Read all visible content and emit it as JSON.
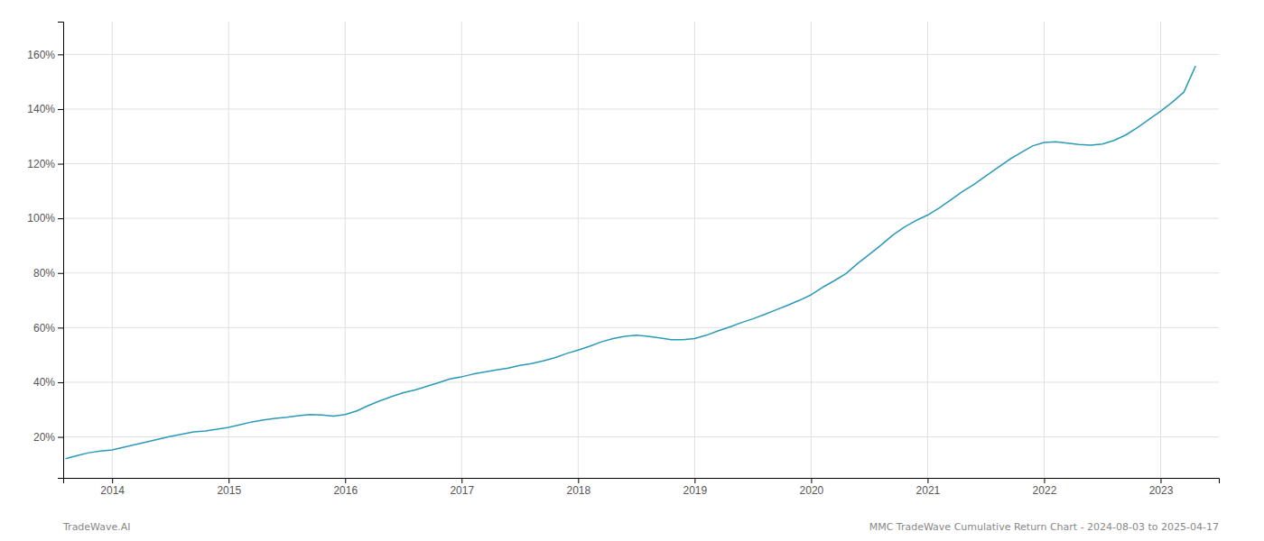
{
  "chart_data": {
    "type": "line",
    "x": [
      2013.6,
      2013.7,
      2013.8,
      2013.9,
      2014.0,
      2014.1,
      2014.2,
      2014.3,
      2014.4,
      2014.5,
      2014.6,
      2014.7,
      2014.8,
      2014.9,
      2015.0,
      2015.1,
      2015.2,
      2015.3,
      2015.4,
      2015.5,
      2015.6,
      2015.7,
      2015.8,
      2015.9,
      2016.0,
      2016.1,
      2016.2,
      2016.3,
      2016.4,
      2016.5,
      2016.6,
      2016.7,
      2016.8,
      2016.9,
      2017.0,
      2017.1,
      2017.2,
      2017.3,
      2017.4,
      2017.5,
      2017.6,
      2017.7,
      2017.8,
      2017.9,
      2018.0,
      2018.1,
      2018.2,
      2018.3,
      2018.4,
      2018.5,
      2018.6,
      2018.7,
      2018.8,
      2018.9,
      2019.0,
      2019.1,
      2019.2,
      2019.3,
      2019.4,
      2019.5,
      2019.6,
      2019.7,
      2019.8,
      2019.9,
      2020.0,
      2020.1,
      2020.2,
      2020.3,
      2020.4,
      2020.5,
      2020.6,
      2020.7,
      2020.8,
      2020.9,
      2021.0,
      2021.1,
      2021.2,
      2021.3,
      2021.4,
      2021.5,
      2021.6,
      2021.7,
      2021.8,
      2021.9,
      2022.0,
      2022.1,
      2022.2,
      2022.3,
      2022.4,
      2022.5,
      2022.6,
      2022.7,
      2022.8,
      2022.9,
      2023.0,
      2023.1,
      2023.2,
      2023.3
    ],
    "values": [
      0.12,
      0.132,
      0.142,
      0.148,
      0.152,
      0.162,
      0.172,
      0.182,
      0.192,
      0.202,
      0.21,
      0.218,
      0.222,
      0.228,
      0.235,
      0.245,
      0.255,
      0.262,
      0.268,
      0.272,
      0.278,
      0.282,
      0.28,
      0.276,
      0.282,
      0.295,
      0.315,
      0.332,
      0.348,
      0.362,
      0.372,
      0.385,
      0.398,
      0.412,
      0.42,
      0.43,
      0.438,
      0.445,
      0.452,
      0.462,
      0.468,
      0.478,
      0.49,
      0.505,
      0.518,
      0.532,
      0.548,
      0.56,
      0.568,
      0.572,
      0.568,
      0.562,
      0.556,
      0.556,
      0.56,
      0.572,
      0.588,
      0.602,
      0.618,
      0.632,
      0.648,
      0.665,
      0.682,
      0.7,
      0.72,
      0.748,
      0.772,
      0.798,
      0.835,
      0.868,
      0.902,
      0.938,
      0.968,
      0.992,
      1.012,
      1.038,
      1.068,
      1.098,
      1.125,
      1.155,
      1.185,
      1.215,
      1.24,
      1.265,
      1.278,
      1.28,
      1.275,
      1.27,
      1.268,
      1.272,
      1.285,
      1.305,
      1.332,
      1.362,
      1.392,
      1.425,
      1.462,
      1.558
    ],
    "color": "#2b9ab8",
    "xlim": [
      2013.58,
      2023.5
    ],
    "xticks": [
      2014,
      2015,
      2016,
      2017,
      2018,
      2019,
      2020,
      2021,
      2022,
      2023
    ],
    "ylim": [
      0.05,
      1.72
    ],
    "yticks": [
      {
        "value": 0.2,
        "label": "20%"
      },
      {
        "value": 0.4,
        "label": "40%"
      },
      {
        "value": 0.6,
        "label": "60%"
      },
      {
        "value": 0.8,
        "label": "80%"
      },
      {
        "value": 1.0,
        "label": "100%"
      },
      {
        "value": 1.2,
        "label": "120%"
      },
      {
        "value": 1.4,
        "label": "140%"
      },
      {
        "value": 1.6,
        "label": "160%"
      }
    ],
    "grid": true,
    "annotations": [
      "TradeWave.AI",
      "MMC TradeWave Cumulative Return Chart - 2024-08-03 to 2025-04-17"
    ]
  }
}
